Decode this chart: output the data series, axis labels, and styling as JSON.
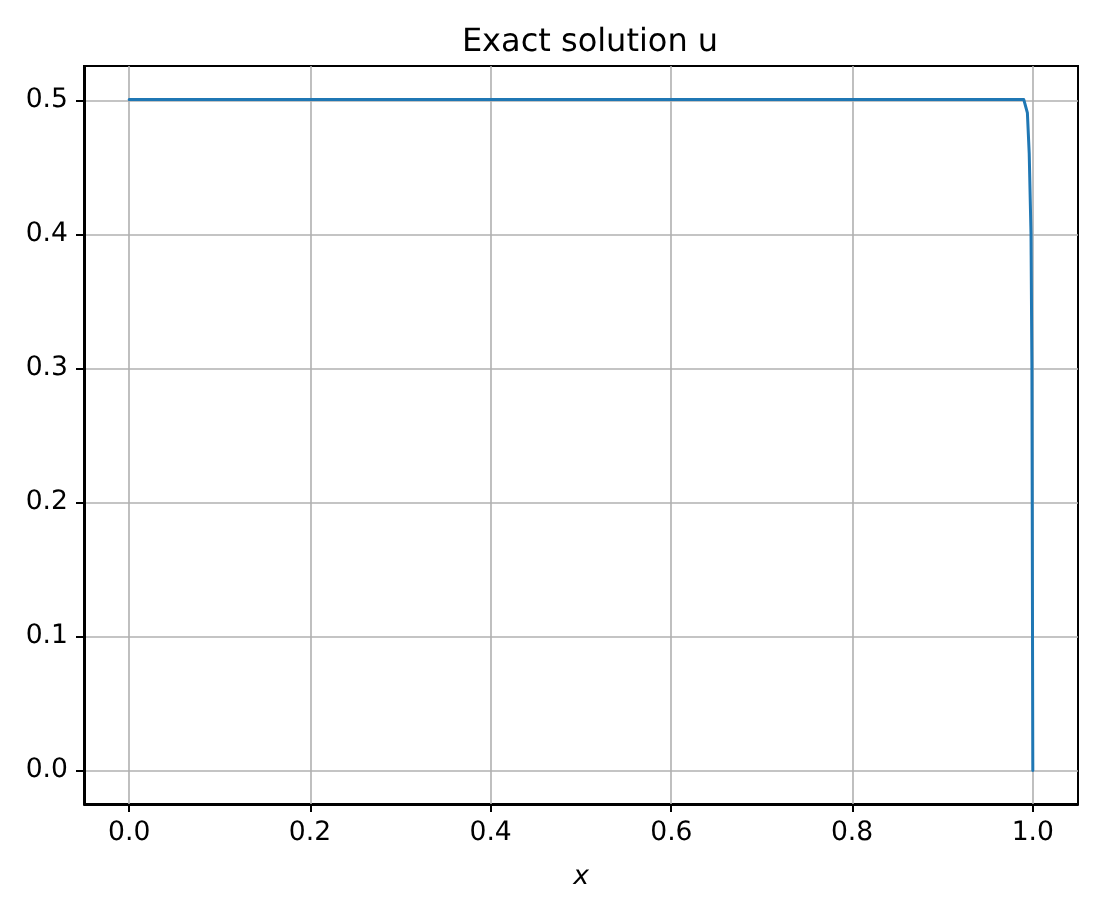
{
  "chart_data": {
    "type": "line",
    "title": "Exact solution u",
    "xlabel": "x",
    "x": [
      0,
      0.2,
      0.4,
      0.6,
      0.8,
      0.99,
      0.994,
      0.996,
      0.998,
      0.999,
      1
    ],
    "series": [
      {
        "color": "#1f77b4",
        "values": [
          0.5,
          0.5,
          0.5,
          0.5,
          0.5,
          0.5,
          0.49,
          0.46,
          0.4,
          0.3,
          0
        ]
      }
    ],
    "xlim": [
      -0.05,
      1.05
    ],
    "xticks": [
      {
        "value": 0,
        "label": "0.0"
      },
      0.2,
      0.4,
      0.6,
      0.8,
      {
        "value": 1,
        "label": "1.0"
      }
    ],
    "ylim": [
      -0.025,
      0.525
    ],
    "yticks": [
      {
        "value": 0,
        "label": "0.0"
      },
      0.1,
      0.2,
      0.3,
      0.4,
      0.5
    ],
    "grid": true,
    "legend": false,
    "marker": "none",
    "line_style": "solid"
  }
}
